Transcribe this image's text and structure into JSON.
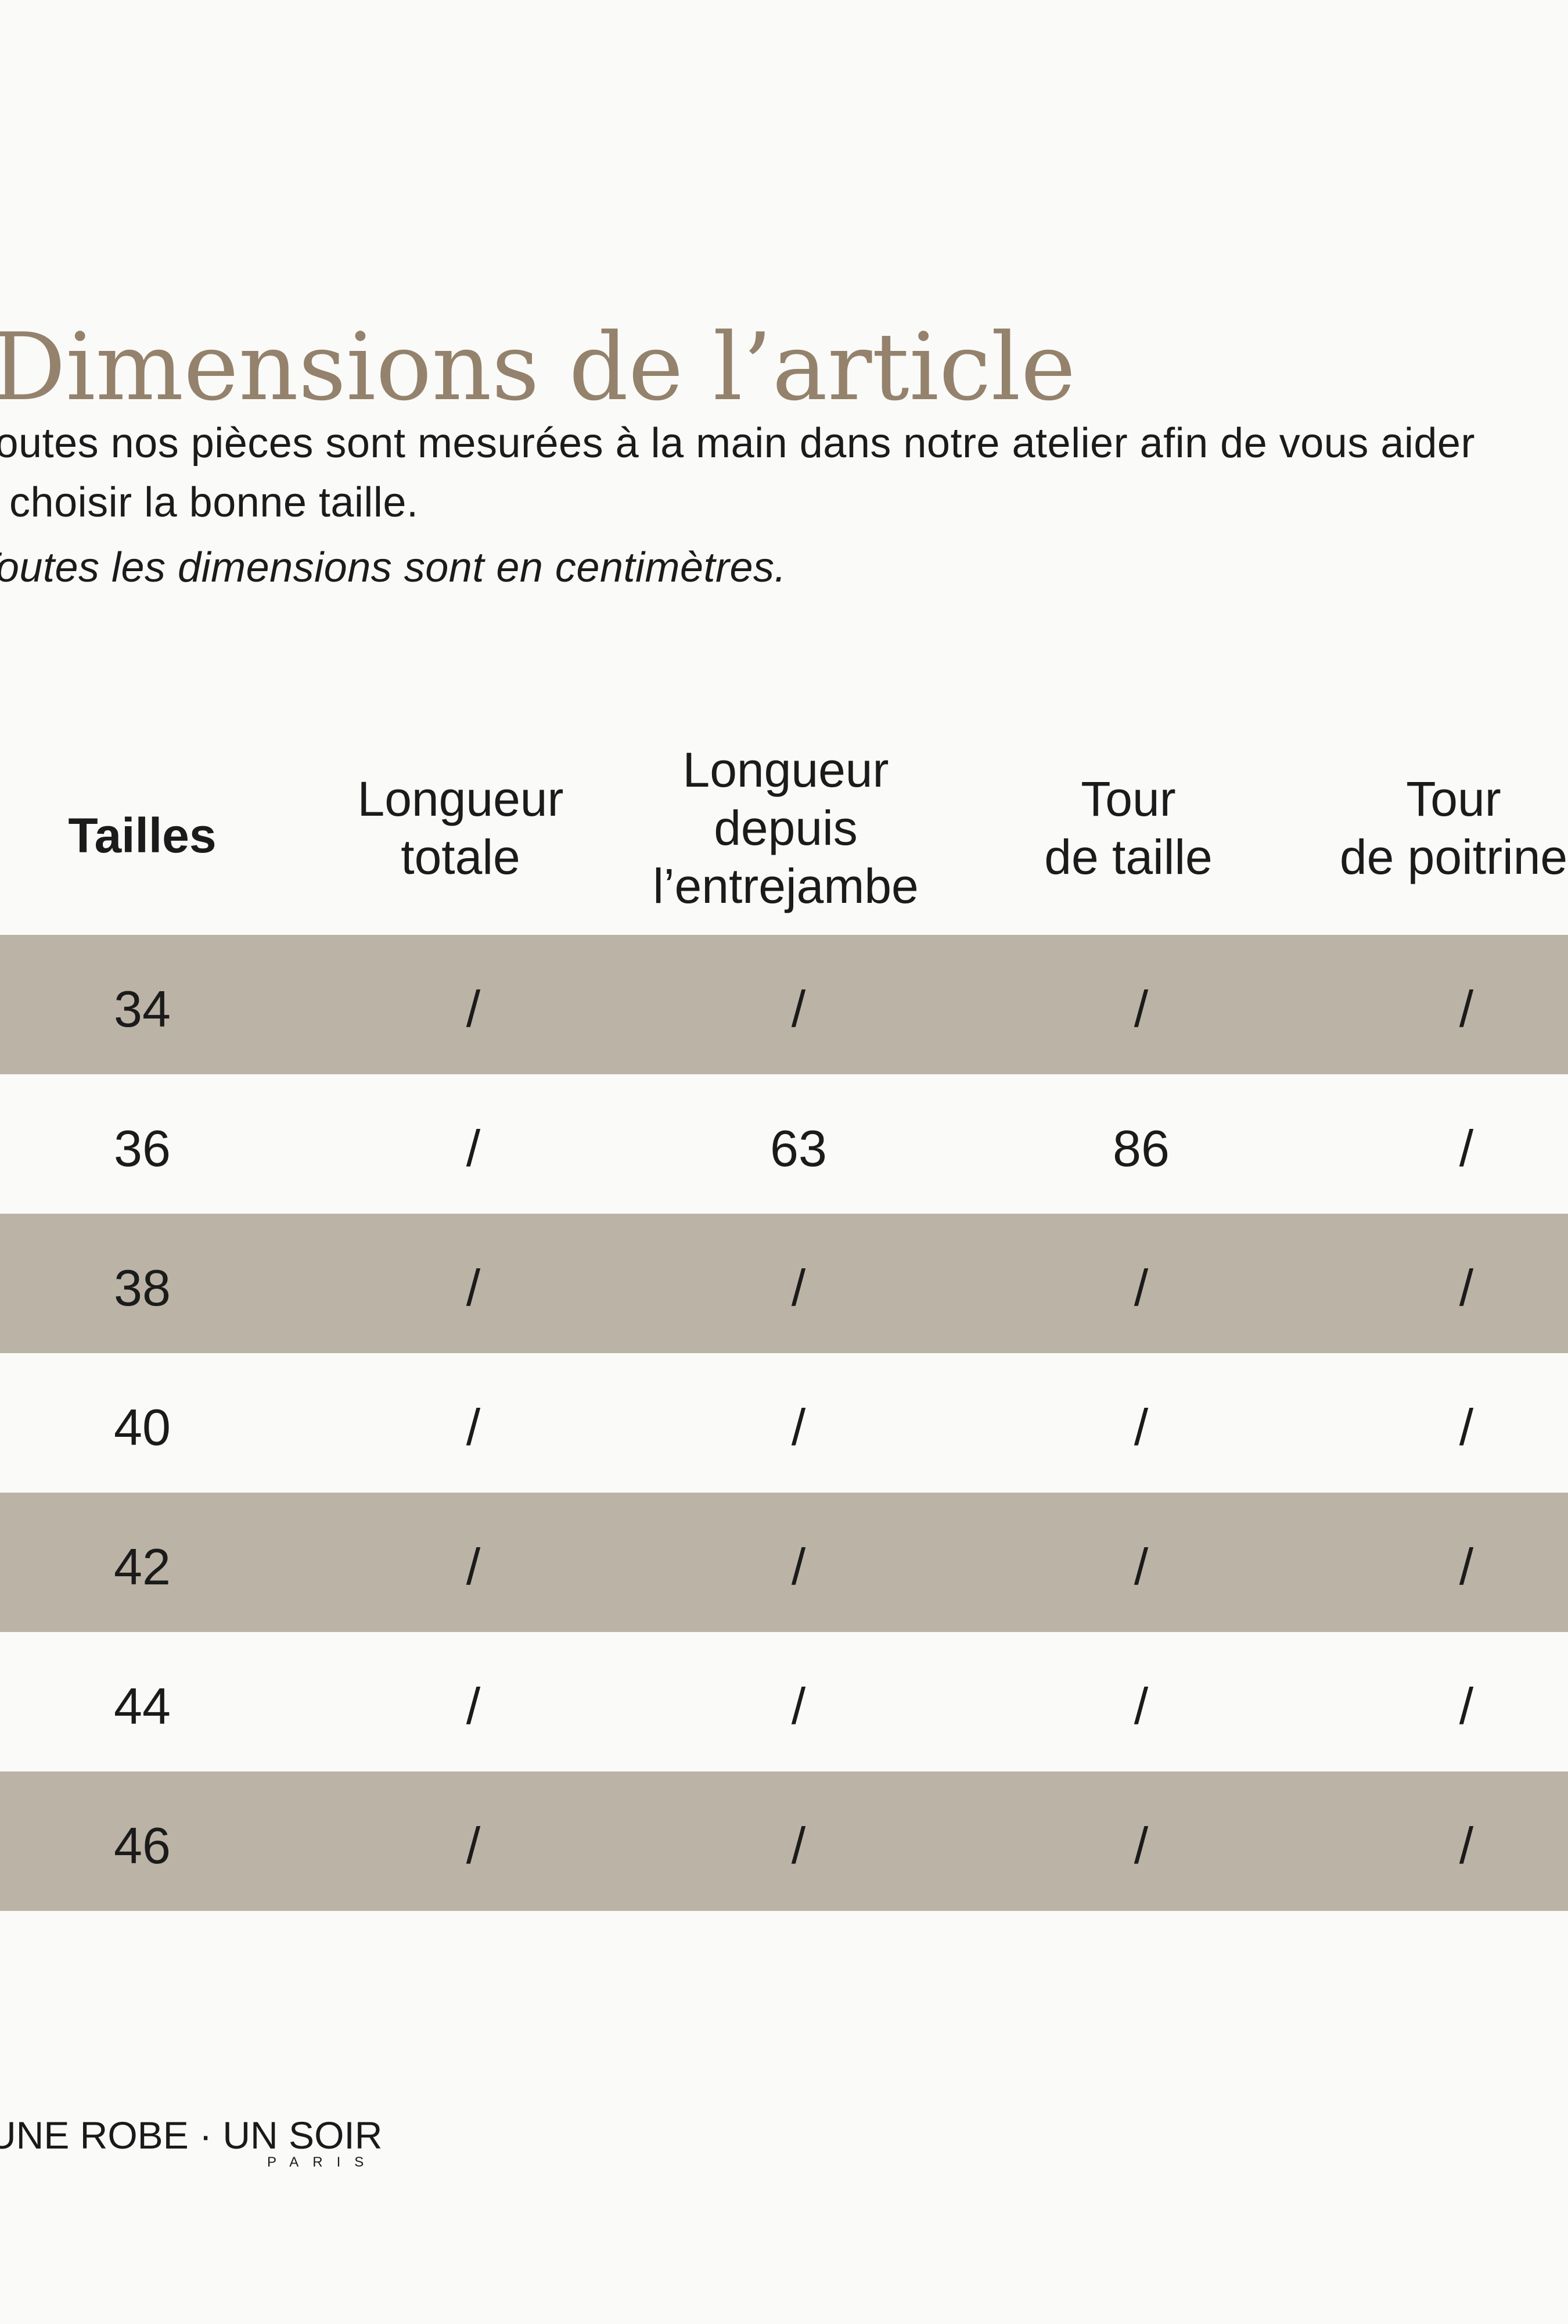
{
  "page": {
    "background": "#fafaf9",
    "text_color": "#1b1b1b"
  },
  "title": {
    "text": "Dimensions de l’article",
    "color": "#94826c"
  },
  "intro": {
    "line1": "Toutes nos pièces sont mesurées à la main dans notre atelier afin de vous aider",
    "line2": "à choisir la bonne taille.",
    "note": "Toutes les dimensions sont en centimètres."
  },
  "table": {
    "highlight_color": "#bbb3a5",
    "columns": [
      "Tailles",
      "Longueur\ntotale",
      "Longueur\ndepuis\nl’entrejambe",
      "Tour\nde taille",
      "Tour\nde poitrine"
    ],
    "rows": [
      {
        "size": "34",
        "values": [
          "/",
          "/",
          "/",
          "/"
        ],
        "shaded": true
      },
      {
        "size": "36",
        "values": [
          "/",
          "63",
          "86",
          "/"
        ],
        "shaded": false
      },
      {
        "size": "38",
        "values": [
          "/",
          "/",
          "/",
          "/"
        ],
        "shaded": true
      },
      {
        "size": "40",
        "values": [
          "/",
          "/",
          "/",
          "/"
        ],
        "shaded": false
      },
      {
        "size": "42",
        "values": [
          "/",
          "/",
          "/",
          "/"
        ],
        "shaded": true
      },
      {
        "size": "44",
        "values": [
          "/",
          "/",
          "/",
          "/"
        ],
        "shaded": false
      },
      {
        "size": "46",
        "values": [
          "/",
          "/",
          "/",
          "/"
        ],
        "shaded": true
      }
    ]
  },
  "footer": {
    "brand": "UNE ROBE · UN SOIR",
    "brand_sub": "PARIS"
  }
}
